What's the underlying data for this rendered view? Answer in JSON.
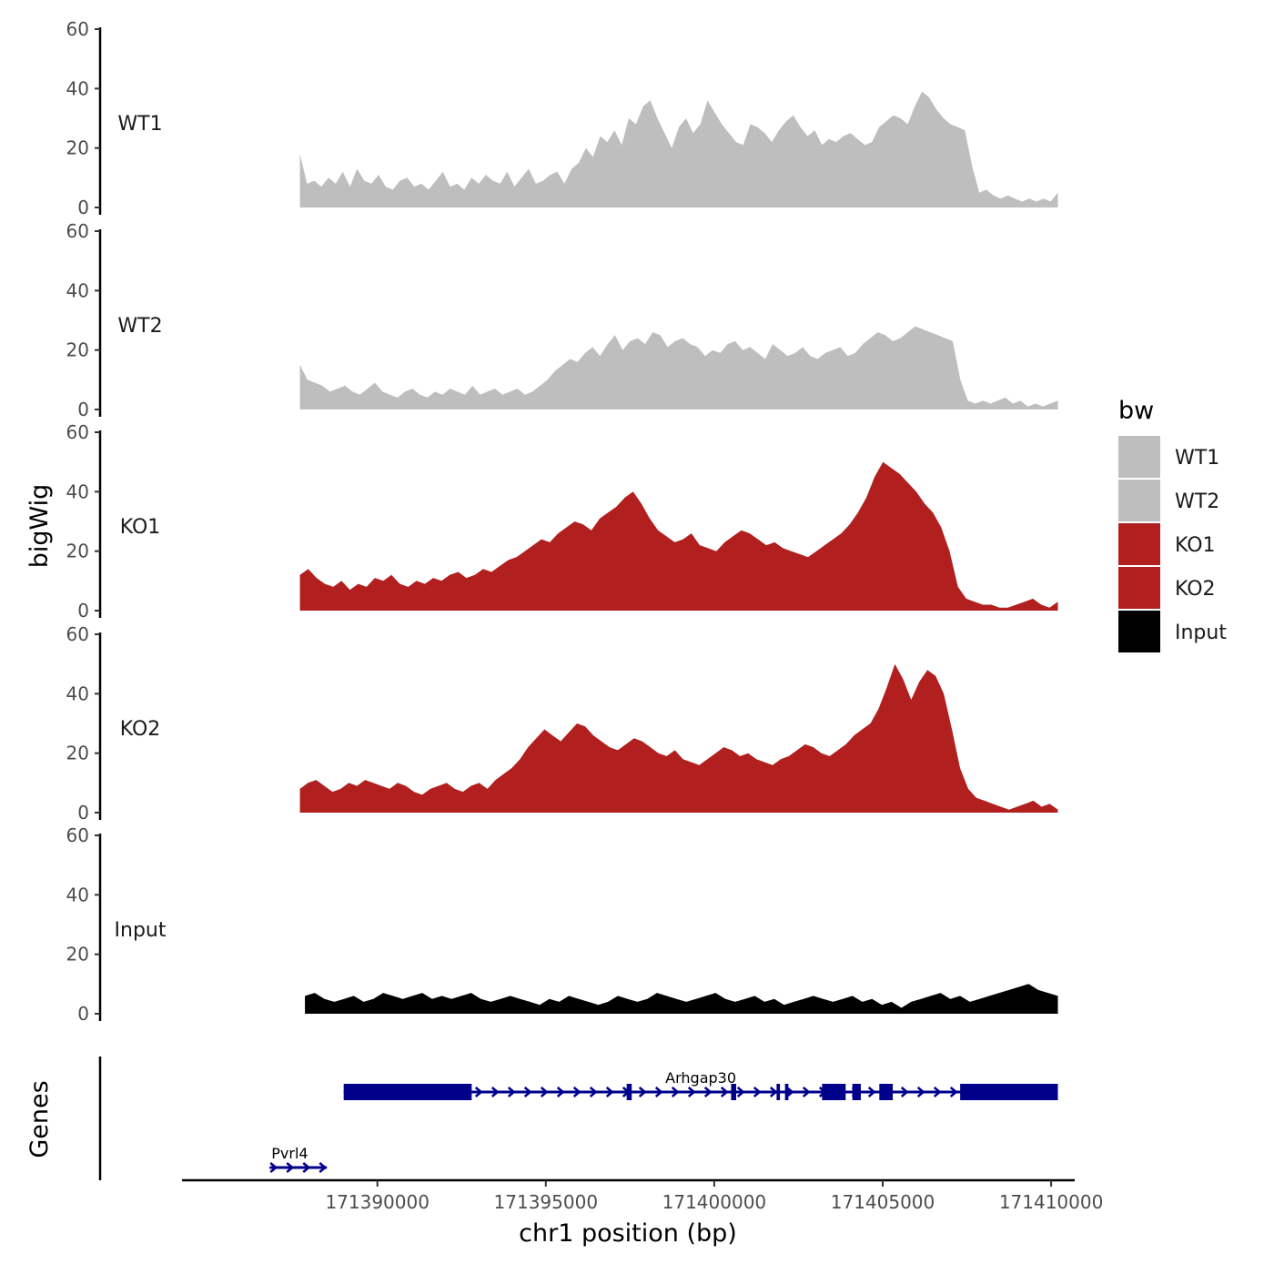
{
  "chart_data": {
    "type": "area",
    "ylabel": "bigWig",
    "xlabel": "chr1 position (bp)",
    "genes_label": "Genes",
    "x_range": [
      171384200,
      171410700
    ],
    "x_ticks": [
      {
        "value": 171390000,
        "label": "171390000"
      },
      {
        "value": 171395000,
        "label": "171395000"
      },
      {
        "value": 171400000,
        "label": "171400000"
      },
      {
        "value": 171405000,
        "label": "171405000"
      },
      {
        "value": 171410000,
        "label": "171410000"
      }
    ],
    "y_range": [
      0,
      60
    ],
    "y_ticks": [
      {
        "value": 0,
        "label": "0"
      },
      {
        "value": 20,
        "label": "20"
      },
      {
        "value": 40,
        "label": "40"
      },
      {
        "value": 60,
        "label": "60"
      }
    ],
    "legend": {
      "title": "bw",
      "items": [
        {
          "name": "WT1",
          "color": "#bebebe"
        },
        {
          "name": "WT2",
          "color": "#bebebe"
        },
        {
          "name": "KO1",
          "color": "#b21f1f"
        },
        {
          "name": "KO2",
          "color": "#b21f1f"
        },
        {
          "name": "Input",
          "color": "#000000"
        }
      ]
    },
    "series": [
      {
        "name": "WT1",
        "color": "#bebebe",
        "x_start": 171387700,
        "x_end": 171410200,
        "values": [
          18,
          8,
          9,
          7,
          10,
          8,
          12,
          7,
          13,
          9,
          8,
          11,
          7,
          6,
          9,
          10,
          7,
          8,
          6,
          9,
          12,
          7,
          8,
          6,
          10,
          8,
          11,
          9,
          8,
          12,
          7,
          10,
          13,
          8,
          9,
          11,
          12,
          8,
          13,
          15,
          20,
          17,
          24,
          22,
          26,
          21,
          30,
          28,
          34,
          36,
          30,
          25,
          20,
          27,
          30,
          25,
          28,
          36,
          32,
          28,
          25,
          22,
          21,
          28,
          27,
          25,
          22,
          26,
          29,
          31,
          27,
          24,
          26,
          21,
          23,
          22,
          24,
          25,
          23,
          21,
          22,
          27,
          29,
          31,
          30,
          28,
          34,
          39,
          37,
          33,
          30,
          28,
          27,
          26,
          14,
          5,
          6,
          4,
          3,
          4,
          3,
          2,
          3,
          2,
          3,
          2,
          5
        ]
      },
      {
        "name": "WT2",
        "color": "#bebebe",
        "x_start": 171387700,
        "x_end": 171410200,
        "values": [
          15,
          10,
          9,
          8,
          6,
          7,
          8,
          6,
          5,
          7,
          9,
          6,
          5,
          4,
          6,
          7,
          5,
          4,
          6,
          5,
          7,
          6,
          5,
          8,
          5,
          6,
          7,
          5,
          6,
          7,
          5,
          6,
          8,
          10,
          13,
          15,
          17,
          16,
          19,
          21,
          18,
          22,
          25,
          20,
          23,
          24,
          22,
          26,
          25,
          21,
          23,
          24,
          22,
          21,
          18,
          20,
          19,
          22,
          23,
          20,
          21,
          19,
          17,
          22,
          20,
          18,
          19,
          21,
          18,
          17,
          19,
          20,
          21,
          18,
          19,
          22,
          24,
          26,
          25,
          23,
          24,
          26,
          28,
          27,
          26,
          25,
          24,
          23,
          10,
          3,
          2,
          3,
          2,
          3,
          4,
          2,
          3,
          1,
          2,
          1,
          2,
          3
        ]
      },
      {
        "name": "KO1",
        "color": "#b21f1f",
        "x_start": 171387700,
        "x_end": 171410200,
        "values": [
          12,
          14,
          11,
          9,
          8,
          10,
          7,
          9,
          8,
          11,
          10,
          12,
          9,
          8,
          10,
          9,
          11,
          10,
          12,
          13,
          11,
          12,
          14,
          13,
          15,
          17,
          18,
          20,
          22,
          24,
          23,
          26,
          28,
          30,
          29,
          27,
          31,
          33,
          35,
          38,
          40,
          36,
          31,
          27,
          25,
          23,
          24,
          26,
          22,
          21,
          20,
          23,
          25,
          27,
          26,
          24,
          22,
          23,
          21,
          20,
          19,
          18,
          20,
          22,
          24,
          26,
          29,
          33,
          38,
          45,
          50,
          48,
          46,
          43,
          40,
          36,
          33,
          28,
          20,
          8,
          4,
          3,
          2,
          2,
          1,
          1,
          2,
          3,
          4,
          2,
          1,
          3
        ]
      },
      {
        "name": "KO2",
        "color": "#b21f1f",
        "x_start": 171387700,
        "x_end": 171410200,
        "values": [
          8,
          10,
          11,
          9,
          7,
          8,
          10,
          9,
          11,
          10,
          9,
          8,
          10,
          9,
          7,
          6,
          8,
          9,
          10,
          8,
          7,
          9,
          10,
          8,
          11,
          13,
          15,
          18,
          22,
          25,
          28,
          26,
          24,
          27,
          30,
          29,
          26,
          24,
          22,
          21,
          23,
          25,
          24,
          22,
          20,
          19,
          21,
          18,
          17,
          16,
          18,
          20,
          22,
          21,
          19,
          20,
          18,
          17,
          16,
          18,
          19,
          21,
          23,
          22,
          20,
          19,
          21,
          23,
          26,
          28,
          30,
          35,
          42,
          50,
          45,
          38,
          44,
          48,
          46,
          40,
          28,
          15,
          8,
          5,
          4,
          3,
          2,
          1,
          2,
          3,
          4,
          2,
          3,
          1
        ]
      },
      {
        "name": "Input",
        "color": "#000000",
        "x_start": 171387850,
        "x_end": 171410200,
        "values": [
          6,
          7,
          5,
          4,
          5,
          6,
          4,
          5,
          7,
          6,
          5,
          6,
          7,
          5,
          6,
          5,
          6,
          7,
          5,
          4,
          5,
          6,
          5,
          4,
          3,
          5,
          4,
          6,
          5,
          4,
          3,
          4,
          6,
          5,
          4,
          5,
          7,
          6,
          5,
          4,
          5,
          6,
          7,
          5,
          4,
          5,
          6,
          4,
          5,
          3,
          4,
          5,
          6,
          5,
          4,
          5,
          6,
          4,
          5,
          3,
          4,
          2,
          4,
          5,
          6,
          7,
          5,
          6,
          4,
          5,
          6,
          7,
          8,
          9,
          10,
          8,
          7,
          6
        ]
      }
    ],
    "genes": [
      {
        "name": "Arhgap30",
        "start": 171389000,
        "end": 171410200,
        "strand": "+",
        "exons": [
          [
            171389000,
            171392800
          ],
          [
            171397400,
            171397550
          ],
          [
            171400500,
            171400650
          ],
          [
            171401850,
            171401950
          ],
          [
            171402100,
            171402200
          ],
          [
            171403200,
            171403900
          ],
          [
            171404100,
            171404350
          ],
          [
            171404900,
            171405300
          ],
          [
            171407300,
            171410200
          ]
        ]
      },
      {
        "name": "Pvrl4",
        "start": 171386800,
        "end": 171388500,
        "strand": "+",
        "exons": []
      }
    ]
  }
}
